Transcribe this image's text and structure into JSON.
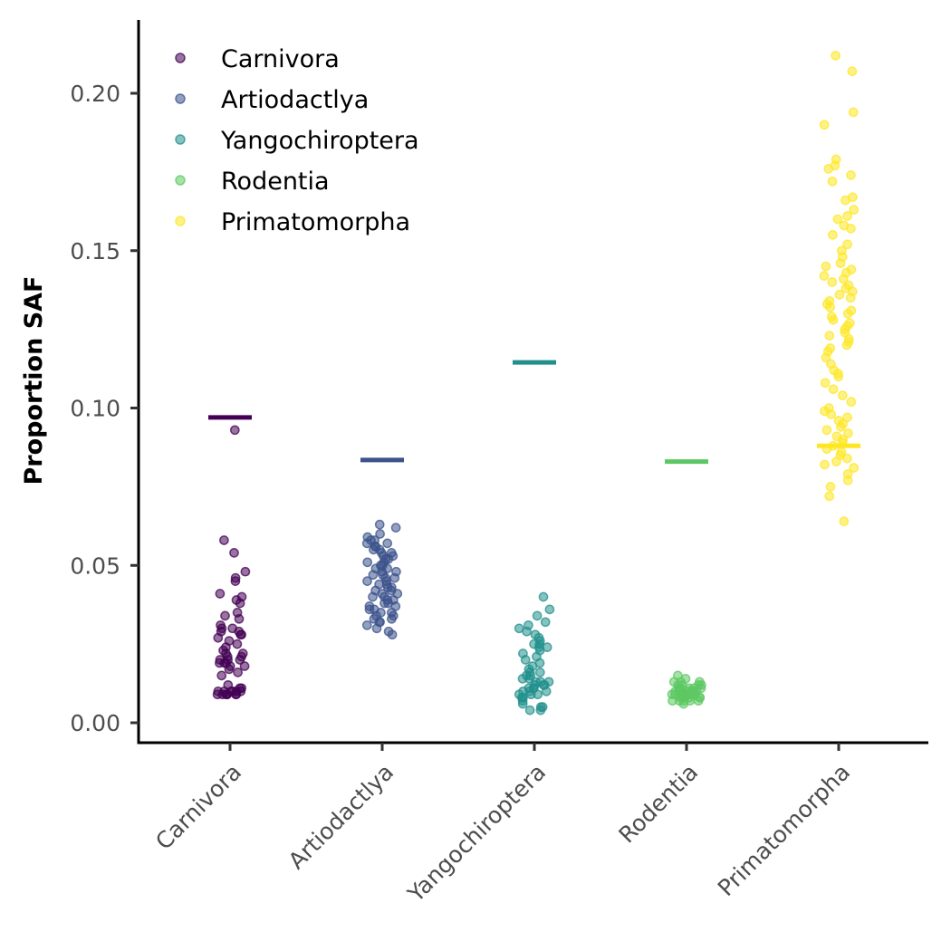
{
  "chart_data": {
    "type": "scatter",
    "xlabel": "",
    "ylabel": "Proportion SAF",
    "ylim": [
      -0.006,
      0.222
    ],
    "yticks": [
      0.0,
      0.05,
      0.1,
      0.15,
      0.2
    ],
    "ytick_labels": [
      "0.00",
      "0.05",
      "0.10",
      "0.15",
      "0.20"
    ],
    "categories": [
      "Carnivora",
      "Artiodactlya",
      "Yangochiroptera",
      "Rodentia",
      "Primatomorpha"
    ],
    "legend_position": "top-left",
    "grid": false,
    "series": [
      {
        "name": "Carnivora",
        "color": "#440154",
        "reference_line": 0.097,
        "values": [
          0.093,
          0.058,
          0.054,
          0.048,
          0.046,
          0.045,
          0.041,
          0.04,
          0.039,
          0.038,
          0.035,
          0.034,
          0.033,
          0.031,
          0.03,
          0.03,
          0.029,
          0.029,
          0.028,
          0.028,
          0.027,
          0.026,
          0.025,
          0.024,
          0.023,
          0.022,
          0.022,
          0.021,
          0.021,
          0.02,
          0.02,
          0.02,
          0.019,
          0.019,
          0.019,
          0.018,
          0.018,
          0.017,
          0.016,
          0.015,
          0.012,
          0.011,
          0.011,
          0.01,
          0.01,
          0.01,
          0.01,
          0.01,
          0.01,
          0.009,
          0.009,
          0.009,
          0.009,
          0.009,
          0.009,
          0.009
        ]
      },
      {
        "name": "Artiodactlya",
        "color": "#3b528b",
        "reference_line": 0.0835,
        "values": [
          0.063,
          0.062,
          0.06,
          0.059,
          0.058,
          0.058,
          0.057,
          0.057,
          0.056,
          0.056,
          0.055,
          0.055,
          0.054,
          0.054,
          0.053,
          0.053,
          0.052,
          0.052,
          0.051,
          0.051,
          0.05,
          0.05,
          0.049,
          0.049,
          0.048,
          0.048,
          0.047,
          0.047,
          0.046,
          0.046,
          0.045,
          0.045,
          0.044,
          0.044,
          0.043,
          0.043,
          0.042,
          0.042,
          0.041,
          0.041,
          0.04,
          0.04,
          0.039,
          0.039,
          0.038,
          0.038,
          0.037,
          0.037,
          0.036,
          0.036,
          0.035,
          0.035,
          0.034,
          0.034,
          0.033,
          0.033,
          0.032,
          0.032,
          0.031,
          0.03,
          0.029,
          0.028
        ]
      },
      {
        "name": "Yangochiroptera",
        "color": "#21908c",
        "reference_line": 0.1145,
        "values": [
          0.04,
          0.036,
          0.034,
          0.032,
          0.031,
          0.03,
          0.029,
          0.028,
          0.027,
          0.026,
          0.025,
          0.025,
          0.024,
          0.024,
          0.023,
          0.022,
          0.021,
          0.02,
          0.019,
          0.018,
          0.017,
          0.016,
          0.016,
          0.015,
          0.015,
          0.014,
          0.014,
          0.013,
          0.013,
          0.013,
          0.012,
          0.012,
          0.012,
          0.011,
          0.011,
          0.011,
          0.01,
          0.01,
          0.01,
          0.009,
          0.009,
          0.009,
          0.008,
          0.008,
          0.007,
          0.006,
          0.005,
          0.005,
          0.004,
          0.004
        ]
      },
      {
        "name": "Rodentia",
        "color": "#5dc863",
        "reference_line": 0.083,
        "values": [
          0.015,
          0.014,
          0.013,
          0.013,
          0.013,
          0.012,
          0.012,
          0.012,
          0.012,
          0.011,
          0.011,
          0.011,
          0.011,
          0.011,
          0.011,
          0.01,
          0.01,
          0.01,
          0.01,
          0.01,
          0.01,
          0.01,
          0.01,
          0.01,
          0.009,
          0.009,
          0.009,
          0.009,
          0.009,
          0.009,
          0.009,
          0.009,
          0.009,
          0.008,
          0.008,
          0.008,
          0.008,
          0.008,
          0.008,
          0.008,
          0.007,
          0.007,
          0.007,
          0.007,
          0.007,
          0.006
        ]
      },
      {
        "name": "Primatomorpha",
        "color": "#fde725",
        "reference_line": 0.088,
        "values": [
          0.212,
          0.207,
          0.194,
          0.19,
          0.179,
          0.177,
          0.176,
          0.174,
          0.172,
          0.167,
          0.166,
          0.163,
          0.161,
          0.16,
          0.158,
          0.157,
          0.155,
          0.152,
          0.15,
          0.148,
          0.146,
          0.145,
          0.144,
          0.143,
          0.142,
          0.141,
          0.14,
          0.139,
          0.138,
          0.137,
          0.136,
          0.135,
          0.134,
          0.133,
          0.132,
          0.131,
          0.13,
          0.129,
          0.128,
          0.127,
          0.126,
          0.125,
          0.124,
          0.123,
          0.122,
          0.121,
          0.12,
          0.119,
          0.118,
          0.116,
          0.114,
          0.112,
          0.111,
          0.11,
          0.108,
          0.106,
          0.104,
          0.102,
          0.1,
          0.099,
          0.098,
          0.097,
          0.096,
          0.095,
          0.094,
          0.093,
          0.092,
          0.091,
          0.09,
          0.089,
          0.088,
          0.087,
          0.086,
          0.085,
          0.084,
          0.083,
          0.082,
          0.081,
          0.079,
          0.077,
          0.075,
          0.072,
          0.064
        ]
      }
    ]
  }
}
